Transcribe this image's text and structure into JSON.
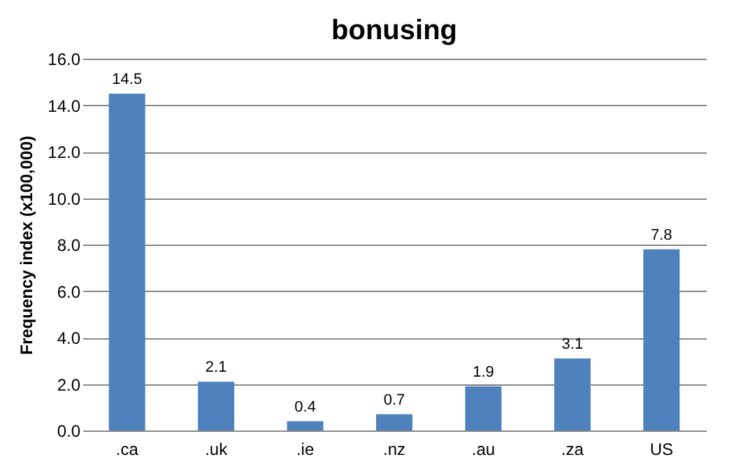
{
  "chart_data": {
    "type": "bar",
    "title": "bonusing",
    "ylabel": "Frequency index (x100,000)",
    "categories": [
      ".ca",
      ".uk",
      ".ie",
      ".nz",
      ".au",
      ".za",
      "US"
    ],
    "values": [
      14.5,
      2.1,
      0.4,
      0.7,
      1.9,
      3.1,
      7.8
    ],
    "color": "#4f81bd",
    "ylim": [
      0,
      16
    ],
    "yticks": [
      {
        "value": 0,
        "label": "0.0"
      },
      {
        "value": 2,
        "label": "2.0"
      },
      {
        "value": 4,
        "label": "4.0"
      },
      {
        "value": 6,
        "label": "6.0"
      },
      {
        "value": 8,
        "label": "8.0"
      },
      {
        "value": 10,
        "label": "10.0"
      },
      {
        "value": 12,
        "label": "12.0"
      },
      {
        "value": 14,
        "label": "14.0"
      },
      {
        "value": 16,
        "label": "16.0"
      }
    ],
    "grid": "y",
    "data_labels": true
  }
}
